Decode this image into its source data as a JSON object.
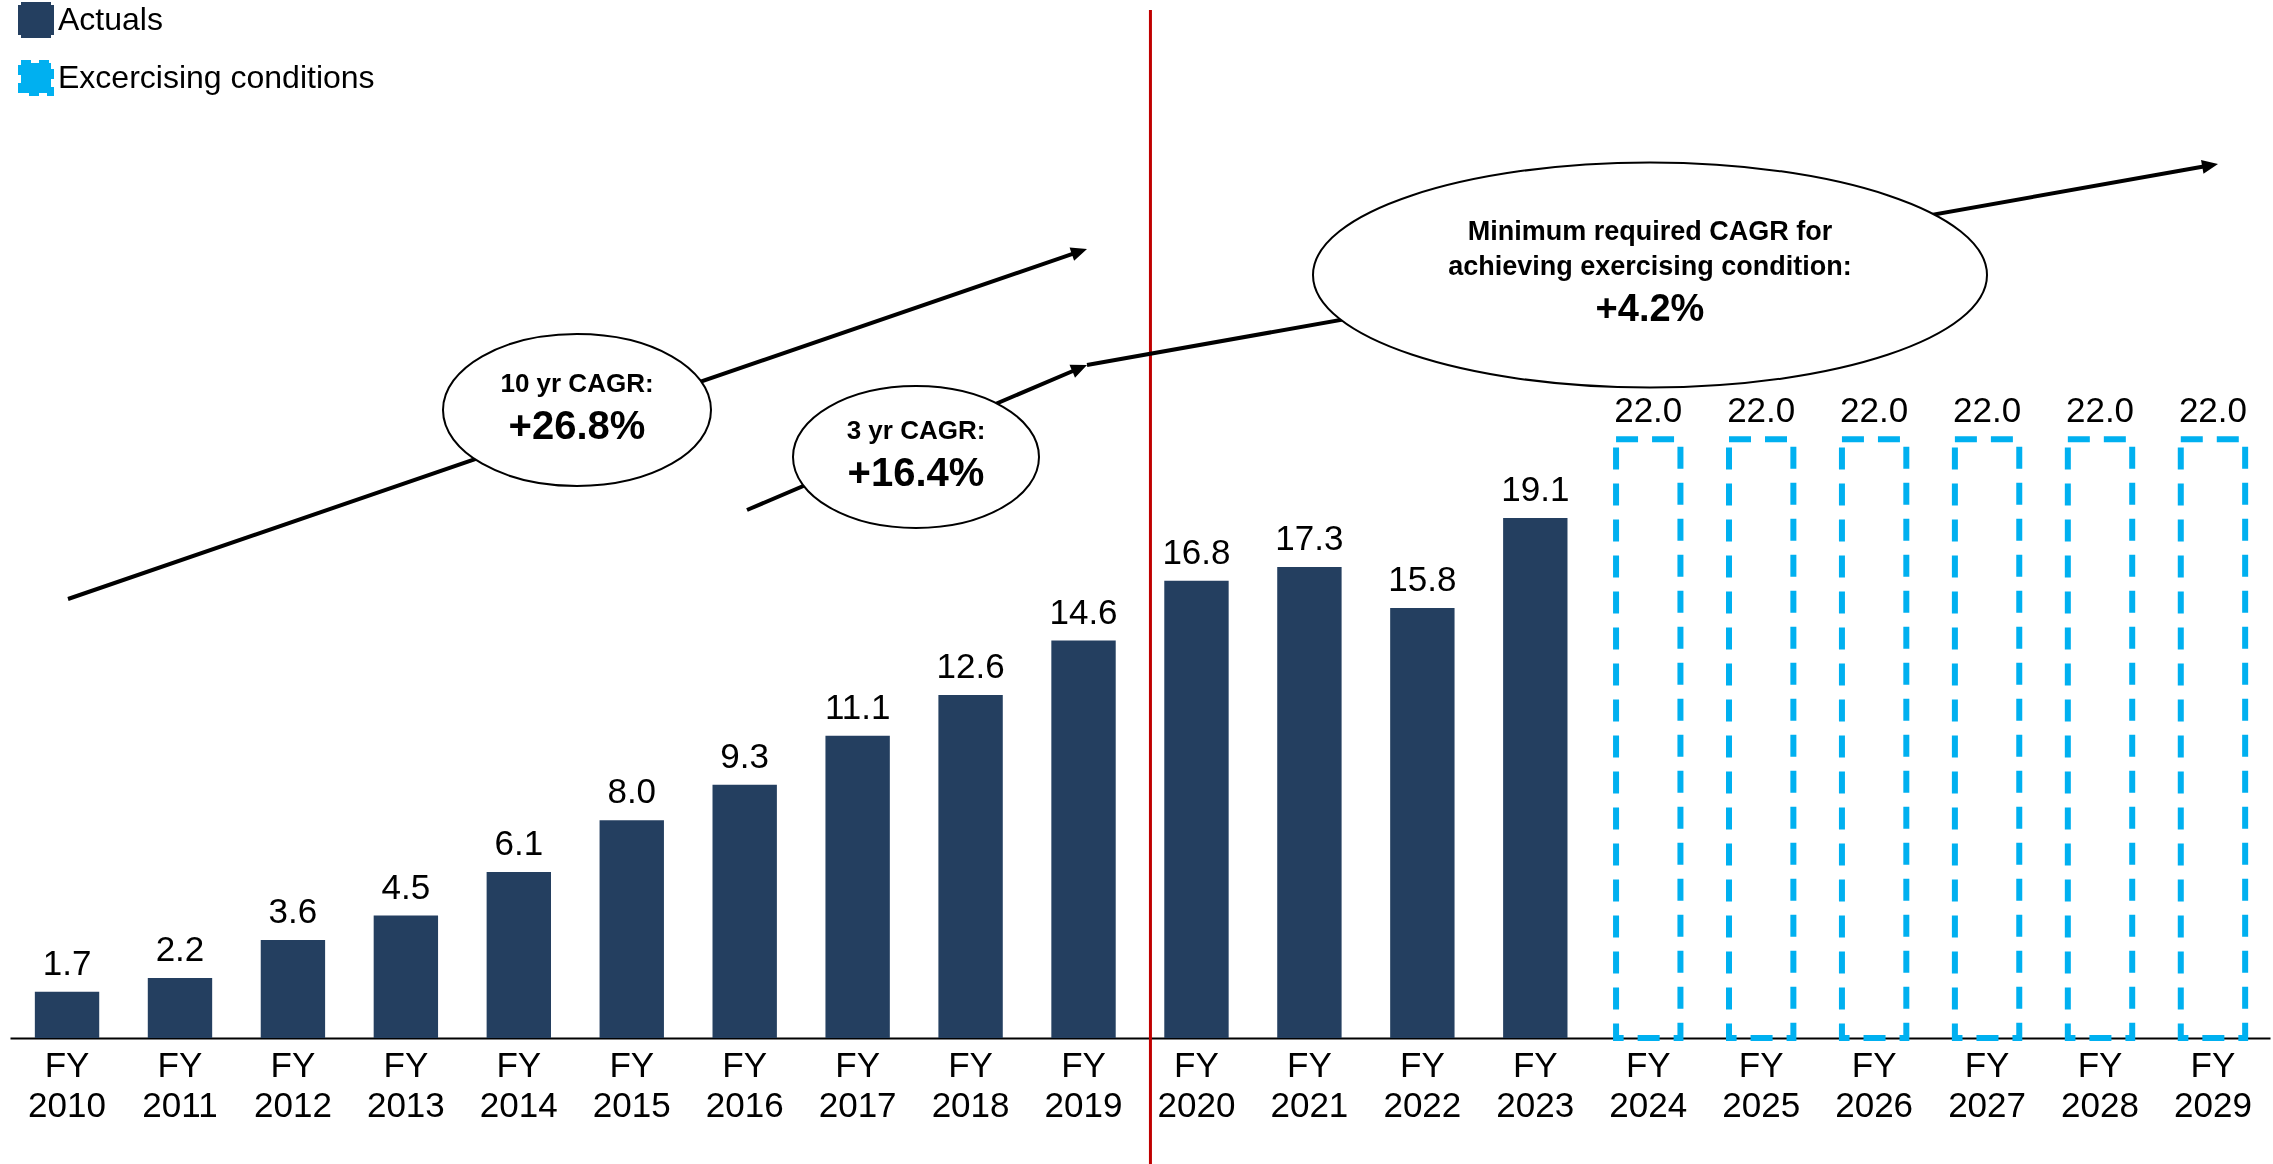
{
  "chart_data": {
    "type": "bar",
    "categories": [
      "FY 2010",
      "FY 2011",
      "FY 2012",
      "FY 2013",
      "FY 2014",
      "FY 2015",
      "FY 2016",
      "FY 2017",
      "FY 2018",
      "FY 2019",
      "FY 2020",
      "FY 2021",
      "FY 2022",
      "FY 2023",
      "FY 2024",
      "FY 2025",
      "FY 2026",
      "FY 2027",
      "FY 2028",
      "FY 2029"
    ],
    "series": [
      {
        "name": "Actuals",
        "color": "#243f60",
        "values": [
          1.7,
          2.2,
          3.6,
          4.5,
          6.1,
          8.0,
          9.3,
          11.1,
          12.6,
          14.6,
          16.8,
          17.3,
          15.8,
          19.1,
          null,
          null,
          null,
          null,
          null,
          null
        ],
        "value_labels": [
          "1.7",
          "2.2",
          "3.6",
          "4.5",
          "6.1",
          "8.0",
          "9.3",
          "11.1",
          "12.6",
          "14.6",
          "16.8",
          "17.3",
          "15.8",
          "19.1",
          null,
          null,
          null,
          null,
          null,
          null
        ]
      },
      {
        "name": "Excercising conditions",
        "color": "#00b0f0",
        "line_style": "dashed",
        "values": [
          null,
          null,
          null,
          null,
          null,
          null,
          null,
          null,
          null,
          null,
          null,
          null,
          null,
          null,
          22.0,
          22.0,
          22.0,
          22.0,
          22.0,
          22.0
        ],
        "value_labels": [
          null,
          null,
          null,
          null,
          null,
          null,
          null,
          null,
          null,
          null,
          null,
          null,
          null,
          null,
          "22.0",
          "22.0",
          "22.0",
          "22.0",
          "22.0",
          "22.0"
        ]
      }
    ],
    "legend": "top left",
    "ref_lines": [
      {
        "axis": "x",
        "value": "FY 2020",
        "color": "#c00000"
      }
    ],
    "annotations": [
      "10 yr CAGR:\n+26.8%",
      "3 yr CAGR:\n+16.4%",
      "Minimum required CAGR for\nachieving exercising condition:\n+4.2%"
    ]
  }
}
